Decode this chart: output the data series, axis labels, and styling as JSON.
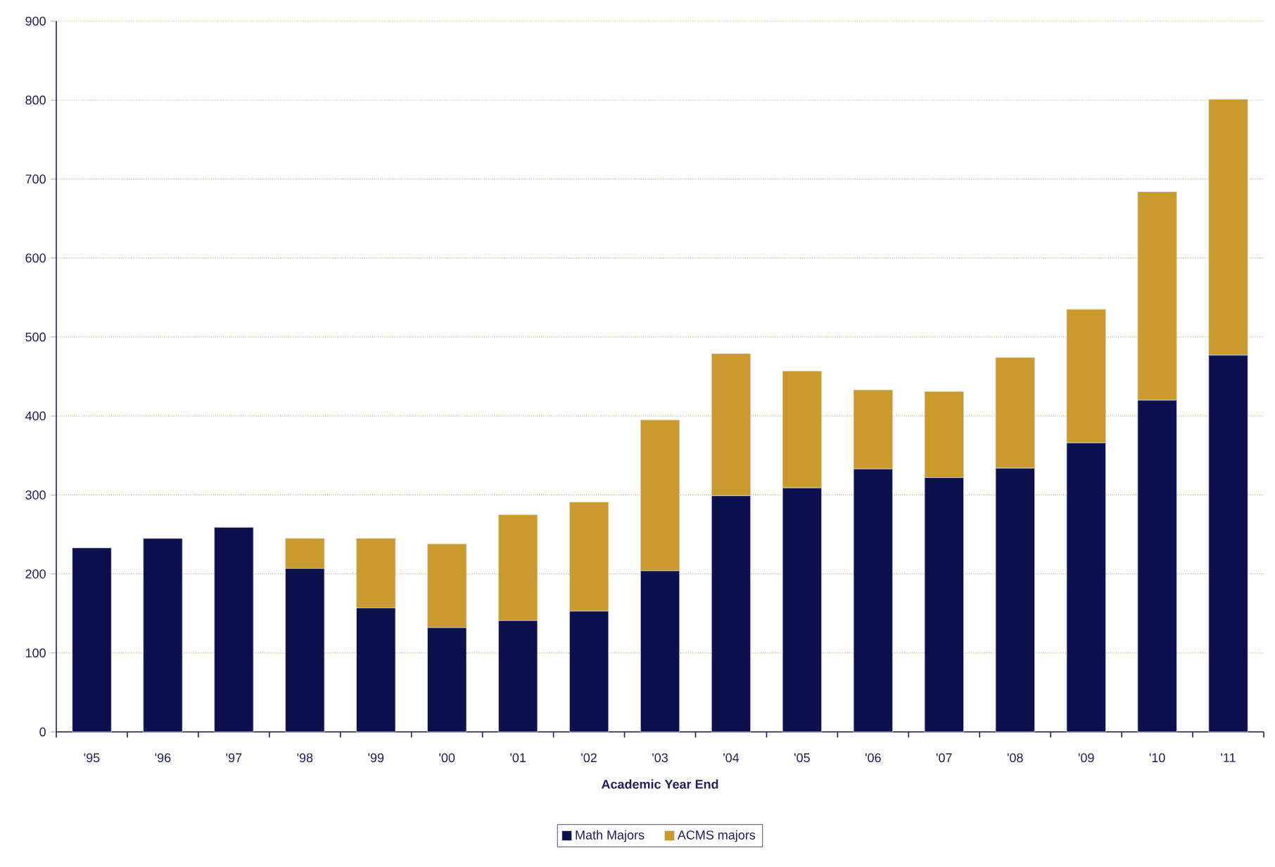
{
  "chart_data": {
    "type": "bar",
    "stacked": true,
    "xlabel": "Academic Year End",
    "categories": [
      "'95",
      "'96",
      "'97",
      "'98",
      "'99",
      "'00",
      "'01",
      "'02",
      "'03",
      "'04",
      "'05",
      "'06",
      "'07",
      "'08",
      "'09",
      "'10",
      "'11"
    ],
    "series": [
      {
        "name": "Math Majors",
        "color": "#0c104d",
        "values": [
          233,
          245,
          259,
          207,
          157,
          132,
          141,
          153,
          204,
          299,
          309,
          333,
          322,
          334,
          366,
          420,
          477
        ]
      },
      {
        "name": "ACMS majors",
        "color": "#c99a2e",
        "values": [
          0,
          0,
          0,
          38,
          88,
          106,
          134,
          138,
          191,
          180,
          148,
          100,
          109,
          140,
          169,
          264,
          324
        ]
      }
    ],
    "ylim": [
      0,
      900
    ],
    "yticks": [
      0,
      100,
      200,
      300,
      400,
      500,
      600,
      700,
      800,
      900
    ],
    "grid": "y",
    "legend": "bottom"
  }
}
